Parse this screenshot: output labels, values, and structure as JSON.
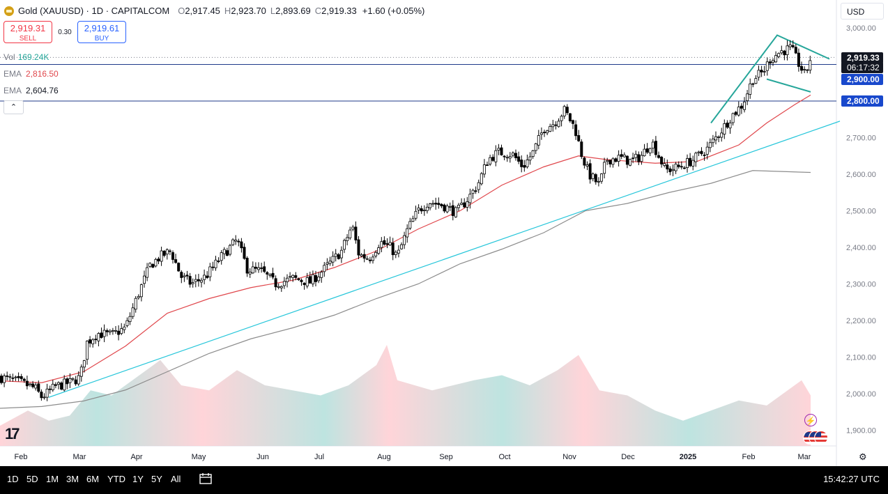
{
  "header": {
    "title": "Gold (XAUUSD) · 1D · CAPITALCOM",
    "open_label": "O",
    "open": "2,917.45",
    "high_label": "H",
    "high": "2,923.70",
    "low_label": "L",
    "low": "2,893.69",
    "close_label": "C",
    "close": "2,919.33",
    "change": "+1.60 (+0.05%)"
  },
  "trade": {
    "sell_price": "2,919.31",
    "sell_label": "SELL",
    "spread": "0.30",
    "buy_price": "2,919.61",
    "buy_label": "BUY"
  },
  "indicators": {
    "vol_label": "Vol",
    "vol_value": "169.24K",
    "ema1_label": "EMA",
    "ema1_value": "2,816.50",
    "ema2_label": "EMA",
    "ema2_value": "2,604.76",
    "collapse_glyph": "⌃"
  },
  "currency": "USD",
  "price_axis": [
    "3,000.00",
    "2,900.00",
    "2,800.00",
    "2,700.00",
    "2,600.00",
    "2,500.00",
    "2,400.00",
    "2,300.00",
    "2,200.00",
    "2,100.00",
    "2,000.00",
    "1,900.00"
  ],
  "price_tags": {
    "last": "2,919.33",
    "countdown": "06:17:32",
    "line1": "2,900.00",
    "line2": "2,800.00"
  },
  "time_axis": [
    "Feb",
    "Mar",
    "Apr",
    "May",
    "Jun",
    "Jul",
    "Aug",
    "Sep",
    "Oct",
    "Nov",
    "Dec",
    "2025",
    "Feb",
    "Mar"
  ],
  "ranges": [
    "1D",
    "5D",
    "1M",
    "3M",
    "6M",
    "YTD",
    "1Y",
    "5Y",
    "All"
  ],
  "clock": "15:42:27 UTC",
  "colors": {
    "up": "#ffffff",
    "down": "#000000",
    "wick": "#000000",
    "ema_fast": "#e0474c",
    "ema_slow": "#8c8c8c",
    "trendline": "#26c6da",
    "wedge": "#26a69a",
    "hline": "#1e3a8a",
    "tag_blue": "#1848cc",
    "vol_up": "#b2dfdb",
    "vol_down": "#ffcdd2"
  },
  "icons": {
    "logo": "gold-logo-icon",
    "flash": "lightning-icon",
    "flags": "us-flag-events-icon",
    "settings": "gear-icon",
    "calendar": "calendar-range-icon"
  },
  "chart_data": {
    "type": "candlestick",
    "symbol": "XAUUSD",
    "timeframe": "1D",
    "ylim": [
      1850,
      3050
    ],
    "path": [
      [
        0,
        2045
      ],
      [
        30,
        2030
      ],
      [
        50,
        2015
      ],
      [
        60,
        1990
      ],
      [
        80,
        2020
      ],
      [
        100,
        2030
      ],
      [
        115,
        2045
      ],
      [
        125,
        2140
      ],
      [
        140,
        2165
      ],
      [
        160,
        2160
      ],
      [
        180,
        2180
      ],
      [
        200,
        2280
      ],
      [
        215,
        2350
      ],
      [
        230,
        2375
      ],
      [
        245,
        2390
      ],
      [
        260,
        2320
      ],
      [
        275,
        2300
      ],
      [
        295,
        2320
      ],
      [
        320,
        2380
      ],
      [
        340,
        2420
      ],
      [
        355,
        2340
      ],
      [
        375,
        2335
      ],
      [
        395,
        2300
      ],
      [
        420,
        2315
      ],
      [
        445,
        2305
      ],
      [
        465,
        2340
      ],
      [
        490,
        2390
      ],
      [
        505,
        2460
      ],
      [
        515,
        2380
      ],
      [
        530,
        2370
      ],
      [
        545,
        2415
      ],
      [
        560,
        2400
      ],
      [
        570,
        2375
      ],
      [
        585,
        2450
      ],
      [
        600,
        2500
      ],
      [
        615,
        2525
      ],
      [
        635,
        2515
      ],
      [
        655,
        2495
      ],
      [
        670,
        2530
      ],
      [
        685,
        2570
      ],
      [
        700,
        2640
      ],
      [
        715,
        2660
      ],
      [
        735,
        2655
      ],
      [
        750,
        2620
      ],
      [
        765,
        2660
      ],
      [
        780,
        2725
      ],
      [
        795,
        2740
      ],
      [
        810,
        2775
      ],
      [
        825,
        2725
      ],
      [
        835,
        2650
      ],
      [
        845,
        2600
      ],
      [
        860,
        2570
      ],
      [
        870,
        2640
      ],
      [
        890,
        2645
      ],
      [
        905,
        2635
      ],
      [
        920,
        2650
      ],
      [
        935,
        2690
      ],
      [
        945,
        2650
      ],
      [
        955,
        2610
      ],
      [
        975,
        2620
      ],
      [
        995,
        2640
      ],
      [
        1015,
        2670
      ],
      [
        1035,
        2720
      ],
      [
        1050,
        2760
      ],
      [
        1065,
        2790
      ],
      [
        1080,
        2860
      ],
      [
        1095,
        2880
      ],
      [
        1105,
        2915
      ],
      [
        1120,
        2935
      ],
      [
        1135,
        2945
      ],
      [
        1145,
        2905
      ],
      [
        1155,
        2870
      ],
      [
        1163,
        2919
      ]
    ],
    "ema_fast": [
      [
        0,
        2035
      ],
      [
        60,
        2030
      ],
      [
        120,
        2060
      ],
      [
        180,
        2130
      ],
      [
        240,
        2220
      ],
      [
        300,
        2260
      ],
      [
        360,
        2290
      ],
      [
        420,
        2310
      ],
      [
        480,
        2345
      ],
      [
        540,
        2390
      ],
      [
        600,
        2450
      ],
      [
        660,
        2500
      ],
      [
        720,
        2570
      ],
      [
        780,
        2620
      ],
      [
        830,
        2650
      ],
      [
        870,
        2640
      ],
      [
        940,
        2630
      ],
      [
        1000,
        2635
      ],
      [
        1060,
        2680
      ],
      [
        1100,
        2740
      ],
      [
        1140,
        2790
      ],
      [
        1163,
        2816.5
      ]
    ],
    "ema_slow": [
      [
        0,
        1960
      ],
      [
        60,
        1965
      ],
      [
        120,
        1980
      ],
      [
        180,
        2010
      ],
      [
        240,
        2060
      ],
      [
        300,
        2110
      ],
      [
        360,
        2150
      ],
      [
        420,
        2180
      ],
      [
        480,
        2215
      ],
      [
        540,
        2260
      ],
      [
        600,
        2300
      ],
      [
        660,
        2355
      ],
      [
        720,
        2395
      ],
      [
        780,
        2440
      ],
      [
        840,
        2500
      ],
      [
        900,
        2520
      ],
      [
        960,
        2550
      ],
      [
        1020,
        2575
      ],
      [
        1080,
        2610
      ],
      [
        1163,
        2604.76
      ]
    ],
    "trendline": [
      [
        70,
        1990
      ],
      [
        1205,
        2745
      ]
    ],
    "wedge_upper": [
      [
        1020,
        2740
      ],
      [
        1115,
        2980
      ],
      [
        1190,
        2915
      ]
    ],
    "wedge_lower": [
      [
        1100,
        2860
      ],
      [
        1163,
        2825
      ]
    ],
    "hlines": [
      2900,
      2800
    ],
    "volume_shape": [
      [
        0,
        0.2
      ],
      [
        40,
        0.35
      ],
      [
        70,
        0.25
      ],
      [
        100,
        0.3
      ],
      [
        130,
        0.55
      ],
      [
        160,
        0.5
      ],
      [
        200,
        0.7
      ],
      [
        230,
        0.85
      ],
      [
        260,
        0.6
      ],
      [
        300,
        0.55
      ],
      [
        340,
        0.75
      ],
      [
        380,
        0.6
      ],
      [
        420,
        0.55
      ],
      [
        460,
        0.5
      ],
      [
        500,
        0.6
      ],
      [
        540,
        0.8
      ],
      [
        555,
        1.0
      ],
      [
        570,
        0.65
      ],
      [
        620,
        0.55
      ],
      [
        680,
        0.65
      ],
      [
        720,
        0.7
      ],
      [
        760,
        0.6
      ],
      [
        800,
        0.75
      ],
      [
        830,
        0.9
      ],
      [
        860,
        0.55
      ],
      [
        900,
        0.5
      ],
      [
        940,
        0.35
      ],
      [
        980,
        0.25
      ],
      [
        1020,
        0.35
      ],
      [
        1060,
        0.45
      ],
      [
        1100,
        0.4
      ],
      [
        1130,
        0.55
      ],
      [
        1150,
        0.65
      ],
      [
        1163,
        0.5
      ]
    ]
  }
}
